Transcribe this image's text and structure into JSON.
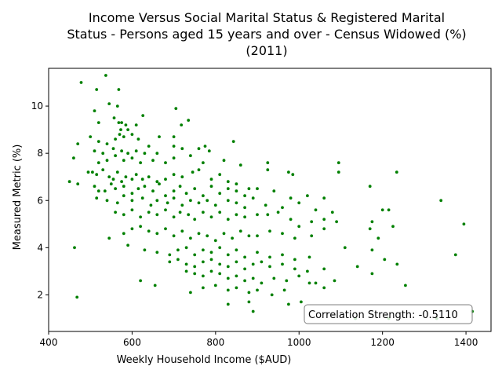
{
  "chart_data": {
    "type": "scatter",
    "title_lines": [
      "Income Versus Social Marital Status & Registered Marital",
      "Status - Persons aged 15 years and over - Census Widowed (%)",
      "(2011)"
    ],
    "xlabel": "Weekly Household Income ($AUD)",
    "ylabel": "Measured Metric (%)",
    "xlim": [
      400,
      1460
    ],
    "ylim": [
      0.45,
      11.6
    ],
    "xticks": [
      400,
      600,
      800,
      1000,
      1200,
      1400
    ],
    "yticks": [
      2,
      4,
      6,
      8,
      10
    ],
    "grid": false,
    "point_color": "#008000",
    "annotation": "Correlation Strength: -0.5110",
    "points": [
      [
        478,
        11.0
      ],
      [
        537,
        11.3
      ],
      [
        515,
        10.7
      ],
      [
        568,
        10.7
      ],
      [
        545,
        10.1
      ],
      [
        565,
        10.0
      ],
      [
        510,
        9.8
      ],
      [
        705,
        9.9
      ],
      [
        520,
        9.3
      ],
      [
        557,
        9.5
      ],
      [
        568,
        9.3
      ],
      [
        575,
        9.3
      ],
      [
        585,
        9.2
      ],
      [
        573,
        9.0
      ],
      [
        590,
        9.0
      ],
      [
        610,
        9.2
      ],
      [
        626,
        9.6
      ],
      [
        735,
        9.4
      ],
      [
        718,
        9.2
      ],
      [
        500,
        8.7
      ],
      [
        520,
        8.5
      ],
      [
        540,
        8.4
      ],
      [
        560,
        8.6
      ],
      [
        570,
        8.8
      ],
      [
        580,
        8.7
      ],
      [
        600,
        8.8
      ],
      [
        615,
        8.6
      ],
      [
        640,
        8.3
      ],
      [
        665,
        8.7
      ],
      [
        700,
        8.7
      ],
      [
        843,
        8.5
      ],
      [
        470,
        8.4
      ],
      [
        510,
        8.1
      ],
      [
        530,
        8.0
      ],
      [
        555,
        8.2
      ],
      [
        575,
        8.1
      ],
      [
        590,
        8.0
      ],
      [
        610,
        8.1
      ],
      [
        630,
        8.0
      ],
      [
        660,
        8.0
      ],
      [
        700,
        8.3
      ],
      [
        720,
        8.2
      ],
      [
        760,
        8.2
      ],
      [
        775,
        8.3
      ],
      [
        785,
        8.1
      ],
      [
        460,
        7.8
      ],
      [
        520,
        7.6
      ],
      [
        540,
        7.7
      ],
      [
        560,
        7.9
      ],
      [
        580,
        7.7
      ],
      [
        600,
        7.8
      ],
      [
        620,
        7.6
      ],
      [
        650,
        7.7
      ],
      [
        680,
        7.6
      ],
      [
        700,
        7.8
      ],
      [
        740,
        7.9
      ],
      [
        770,
        7.6
      ],
      [
        820,
        7.7
      ],
      [
        860,
        7.5
      ],
      [
        925,
        7.6
      ],
      [
        975,
        7.2
      ],
      [
        1095,
        7.6
      ],
      [
        1234,
        7.2
      ],
      [
        470,
        6.7
      ],
      [
        495,
        7.2
      ],
      [
        505,
        7.2
      ],
      [
        515,
        7.1
      ],
      [
        530,
        7.3
      ],
      [
        545,
        7.0
      ],
      [
        555,
        6.9
      ],
      [
        565,
        7.2
      ],
      [
        575,
        6.8
      ],
      [
        585,
        7.0
      ],
      [
        600,
        6.9
      ],
      [
        610,
        7.1
      ],
      [
        625,
        6.9
      ],
      [
        640,
        7.0
      ],
      [
        660,
        6.8
      ],
      [
        680,
        6.9
      ],
      [
        700,
        7.1
      ],
      [
        720,
        7.0
      ],
      [
        745,
        7.2
      ],
      [
        760,
        7.3
      ],
      [
        790,
        6.9
      ],
      [
        810,
        7.1
      ],
      [
        830,
        6.8
      ],
      [
        850,
        6.7
      ],
      [
        880,
        6.5
      ],
      [
        925,
        7.3
      ],
      [
        985,
        7.1
      ],
      [
        1095,
        7.2
      ],
      [
        1170,
        6.6
      ],
      [
        450,
        6.8
      ],
      [
        510,
        6.6
      ],
      [
        520,
        6.4
      ],
      [
        535,
        6.4
      ],
      [
        550,
        6.7
      ],
      [
        560,
        6.5
      ],
      [
        580,
        6.6
      ],
      [
        600,
        6.3
      ],
      [
        615,
        6.5
      ],
      [
        630,
        6.6
      ],
      [
        650,
        6.4
      ],
      [
        665,
        6.7
      ],
      [
        680,
        6.2
      ],
      [
        700,
        6.4
      ],
      [
        715,
        6.6
      ],
      [
        730,
        6.3
      ],
      [
        750,
        6.5
      ],
      [
        770,
        6.2
      ],
      [
        790,
        6.6
      ],
      [
        810,
        6.3
      ],
      [
        830,
        6.5
      ],
      [
        850,
        6.4
      ],
      [
        870,
        6.2
      ],
      [
        900,
        6.5
      ],
      [
        940,
        6.4
      ],
      [
        980,
        6.1
      ],
      [
        1020,
        6.2
      ],
      [
        1060,
        6.1
      ],
      [
        515,
        6.1
      ],
      [
        540,
        6.0
      ],
      [
        565,
        5.9
      ],
      [
        580,
        6.2
      ],
      [
        600,
        6.0
      ],
      [
        625,
        6.1
      ],
      [
        645,
        5.8
      ],
      [
        660,
        6.0
      ],
      [
        685,
        5.9
      ],
      [
        700,
        6.1
      ],
      [
        720,
        5.8
      ],
      [
        740,
        6.0
      ],
      [
        760,
        5.9
      ],
      [
        780,
        6.0
      ],
      [
        800,
        5.8
      ],
      [
        830,
        6.0
      ],
      [
        850,
        5.9
      ],
      [
        870,
        5.7
      ],
      [
        890,
        6.1
      ],
      [
        920,
        5.8
      ],
      [
        960,
        5.7
      ],
      [
        1000,
        5.9
      ],
      [
        1040,
        5.6
      ],
      [
        1080,
        5.5
      ],
      [
        1200,
        5.6
      ],
      [
        1215,
        5.6
      ],
      [
        1340,
        6.0
      ],
      [
        560,
        5.5
      ],
      [
        580,
        5.4
      ],
      [
        600,
        5.6
      ],
      [
        620,
        5.3
      ],
      [
        640,
        5.5
      ],
      [
        660,
        5.4
      ],
      [
        680,
        5.6
      ],
      [
        700,
        5.3
      ],
      [
        715,
        5.5
      ],
      [
        735,
        5.4
      ],
      [
        750,
        5.2
      ],
      [
        770,
        5.5
      ],
      [
        790,
        5.3
      ],
      [
        810,
        5.5
      ],
      [
        830,
        5.2
      ],
      [
        850,
        5.4
      ],
      [
        870,
        5.3
      ],
      [
        900,
        5.4
      ],
      [
        925,
        5.4
      ],
      [
        950,
        5.5
      ],
      [
        980,
        5.2
      ],
      [
        1000,
        4.9
      ],
      [
        1030,
        5.1
      ],
      [
        1060,
        5.2
      ],
      [
        1090,
        5.1
      ],
      [
        1175,
        5.1
      ],
      [
        1395,
        5.0
      ],
      [
        545,
        4.4
      ],
      [
        580,
        4.6
      ],
      [
        600,
        4.8
      ],
      [
        620,
        4.9
      ],
      [
        640,
        4.7
      ],
      [
        660,
        4.6
      ],
      [
        680,
        4.8
      ],
      [
        700,
        4.5
      ],
      [
        720,
        4.7
      ],
      [
        740,
        4.4
      ],
      [
        760,
        4.6
      ],
      [
        780,
        4.5
      ],
      [
        800,
        4.3
      ],
      [
        820,
        4.6
      ],
      [
        840,
        4.4
      ],
      [
        860,
        4.7
      ],
      [
        880,
        4.5
      ],
      [
        900,
        4.5
      ],
      [
        930,
        4.7
      ],
      [
        960,
        4.6
      ],
      [
        990,
        4.4
      ],
      [
        1030,
        4.5
      ],
      [
        1060,
        4.8
      ],
      [
        1170,
        4.8
      ],
      [
        1190,
        4.4
      ],
      [
        1225,
        4.9
      ],
      [
        462,
        4.0
      ],
      [
        590,
        4.1
      ],
      [
        630,
        3.9
      ],
      [
        660,
        3.8
      ],
      [
        690,
        3.7
      ],
      [
        710,
        3.9
      ],
      [
        730,
        4.0
      ],
      [
        750,
        3.7
      ],
      [
        770,
        3.9
      ],
      [
        790,
        3.8
      ],
      [
        810,
        4.0
      ],
      [
        830,
        3.7
      ],
      [
        850,
        3.9
      ],
      [
        870,
        3.6
      ],
      [
        900,
        3.8
      ],
      [
        930,
        3.6
      ],
      [
        960,
        3.7
      ],
      [
        990,
        3.5
      ],
      [
        1025,
        3.6
      ],
      [
        1110,
        4.0
      ],
      [
        1175,
        3.9
      ],
      [
        1375,
        3.7
      ],
      [
        690,
        3.4
      ],
      [
        710,
        3.5
      ],
      [
        730,
        3.3
      ],
      [
        750,
        3.2
      ],
      [
        770,
        3.4
      ],
      [
        790,
        3.5
      ],
      [
        810,
        3.3
      ],
      [
        830,
        3.2
      ],
      [
        850,
        3.4
      ],
      [
        870,
        3.1
      ],
      [
        890,
        3.3
      ],
      [
        910,
        3.4
      ],
      [
        930,
        3.2
      ],
      [
        960,
        3.3
      ],
      [
        990,
        3.1
      ],
      [
        1020,
        3.0
      ],
      [
        1060,
        3.1
      ],
      [
        1140,
        3.2
      ],
      [
        1205,
        3.5
      ],
      [
        1235,
        3.3
      ],
      [
        730,
        3.0
      ],
      [
        750,
        2.9
      ],
      [
        770,
        2.8
      ],
      [
        790,
        3.0
      ],
      [
        810,
        2.9
      ],
      [
        830,
        2.7
      ],
      [
        850,
        2.8
      ],
      [
        870,
        2.6
      ],
      [
        890,
        2.7
      ],
      [
        910,
        2.5
      ],
      [
        940,
        2.7
      ],
      [
        970,
        2.6
      ],
      [
        1000,
        2.8
      ],
      [
        1040,
        2.5
      ],
      [
        1085,
        2.6
      ],
      [
        1175,
        2.9
      ],
      [
        620,
        2.6
      ],
      [
        655,
        2.4
      ],
      [
        740,
        2.1
      ],
      [
        770,
        2.3
      ],
      [
        800,
        2.4
      ],
      [
        830,
        2.2
      ],
      [
        850,
        2.3
      ],
      [
        880,
        2.1
      ],
      [
        900,
        2.2
      ],
      [
        935,
        2.0
      ],
      [
        965,
        2.2
      ],
      [
        1025,
        2.5
      ],
      [
        1060,
        2.3
      ],
      [
        1255,
        2.4
      ],
      [
        468,
        1.9
      ],
      [
        830,
        1.6
      ],
      [
        880,
        1.7
      ],
      [
        890,
        1.3
      ],
      [
        975,
        1.6
      ],
      [
        1005,
        1.7
      ],
      [
        1135,
        1.0
      ],
      [
        1215,
        1.0
      ],
      [
        1330,
        1.0
      ],
      [
        1415,
        1.3
      ]
    ]
  }
}
